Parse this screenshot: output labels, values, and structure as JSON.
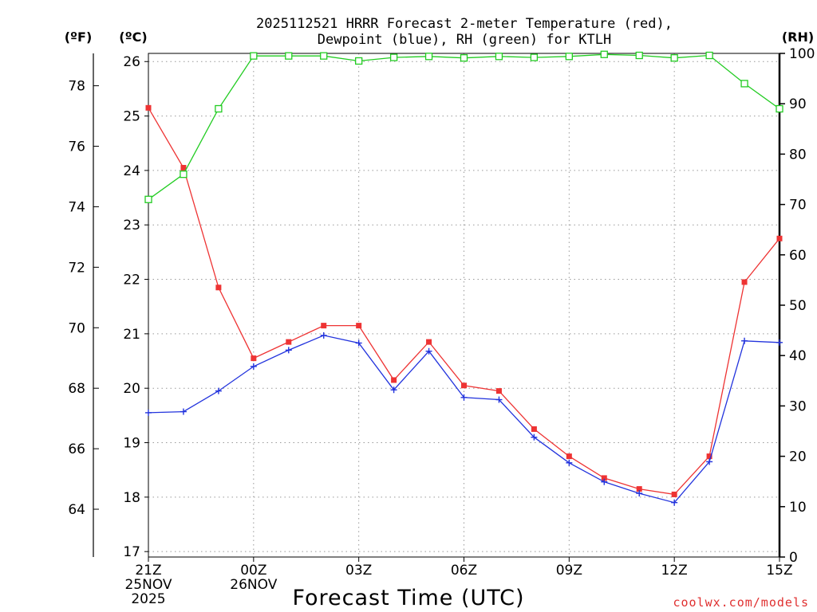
{
  "title_lines": [
    "2025112521 HRRR Forecast 2-meter Temperature (red),",
    "Dewpoint (blue), RH (green) for KTLH"
  ],
  "units": {
    "fahrenheit": "(ºF)",
    "celsius": "(ºC)",
    "rh": "(RH)"
  },
  "credit": "coolwx.com/models",
  "colors": {
    "temperature": "#ee3333",
    "dewpoint": "#2233dd",
    "rh": "#22cc22",
    "grid": "#999999"
  },
  "chart_data": {
    "type": "line",
    "title": "2025112521 HRRR Forecast 2-meter Temperature (red), Dewpoint (blue), RH (green) for KTLH",
    "xlabel": "Forecast Time (UTC)",
    "x_hours": [
      0,
      1,
      2,
      3,
      4,
      5,
      6,
      7,
      8,
      9,
      10,
      11,
      12,
      13,
      14,
      15,
      16,
      17,
      18
    ],
    "xlim": [
      0,
      18
    ],
    "x_ticks": [
      {
        "x": 0,
        "lines": [
          "21Z",
          "25NOV",
          "2025"
        ]
      },
      {
        "x": 3,
        "lines": [
          "00Z",
          "26NOV"
        ]
      },
      {
        "x": 6,
        "lines": [
          "03Z"
        ]
      },
      {
        "x": 9,
        "lines": [
          "06Z"
        ]
      },
      {
        "x": 12,
        "lines": [
          "09Z"
        ]
      },
      {
        "x": 15,
        "lines": [
          "12Z"
        ]
      },
      {
        "x": 18,
        "lines": [
          "15Z"
        ]
      }
    ],
    "y_celsius": {
      "label": "(ºC)",
      "ylim": [
        16.9,
        26.15
      ],
      "ticks": [
        17,
        18,
        19,
        20,
        21,
        22,
        23,
        24,
        25,
        26
      ]
    },
    "y_fahrenheit": {
      "label": "(ºF)",
      "ticks": [
        64,
        66,
        68,
        70,
        72,
        74,
        76,
        78
      ]
    },
    "y_rh": {
      "label": "(RH)",
      "ylim": [
        0,
        100
      ],
      "ticks": [
        0,
        10,
        20,
        30,
        40,
        50,
        60,
        70,
        80,
        90,
        100
      ]
    },
    "series": [
      {
        "name": "Temperature",
        "axis": "celsius",
        "color": "#ee3333",
        "marker": "filled-square",
        "values": [
          25.15,
          24.05,
          21.85,
          20.55,
          20.85,
          21.15,
          21.15,
          20.15,
          20.85,
          20.05,
          19.95,
          19.25,
          18.75,
          18.35,
          18.15,
          18.05,
          18.75,
          21.95,
          22.75
        ]
      },
      {
        "name": "Dewpoint",
        "axis": "celsius",
        "color": "#2233dd",
        "marker": "plus",
        "values": [
          19.55,
          19.57,
          19.95,
          20.4,
          20.7,
          20.97,
          20.83,
          19.97,
          20.68,
          19.83,
          19.79,
          19.1,
          18.63,
          18.28,
          18.07,
          17.9,
          18.65,
          20.87,
          20.84
        ]
      },
      {
        "name": "RH",
        "axis": "rh",
        "color": "#22cc22",
        "marker": "open-square",
        "values": [
          71,
          76,
          89,
          99.5,
          99.5,
          99.5,
          98.5,
          99.2,
          99.4,
          99.1,
          99.4,
          99.2,
          99.4,
          99.8,
          99.6,
          99.1,
          99.6,
          94,
          89
        ]
      }
    ]
  }
}
